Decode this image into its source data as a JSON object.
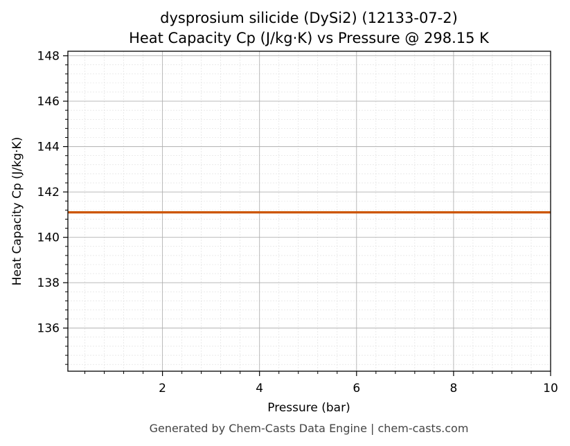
{
  "chart_data": {
    "type": "line",
    "title": "dysprosium silicide (DySi2) (12133-07-2)",
    "subtitle": "Heat Capacity Cp (J/kg·K) vs Pressure @ 298.15 K",
    "xlabel": "Pressure (bar)",
    "ylabel": "Heat Capacity Cp (J/kg·K)",
    "xlim": [
      0.05,
      10
    ],
    "ylim": [
      134.1,
      148.2
    ],
    "x_ticks": [
      2,
      4,
      6,
      8,
      10
    ],
    "y_ticks": [
      136,
      138,
      140,
      142,
      144,
      146,
      148
    ],
    "x_minor_step": 0.4,
    "y_minor_step": 0.4,
    "grid": true,
    "series": [
      {
        "color": "#cc5500",
        "x": [
          0.05,
          10
        ],
        "values": [
          141.1,
          141.1
        ]
      }
    ]
  },
  "footer": {
    "text": "Generated by Chem-Casts Data Engine | chem-casts.com"
  },
  "colors": {
    "major_grid": "#b0b0b0",
    "minor_grid": "#dddddd",
    "axis": "#000000",
    "footer": "#444444"
  }
}
